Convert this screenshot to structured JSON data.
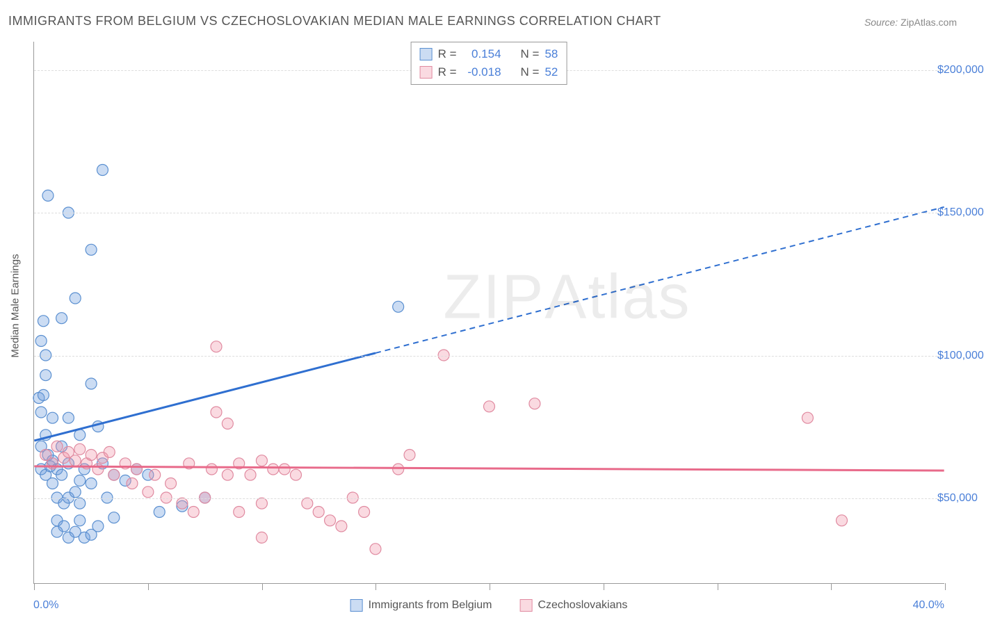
{
  "title": "IMMIGRANTS FROM BELGIUM VS CZECHOSLOVAKIAN MEDIAN MALE EARNINGS CORRELATION CHART",
  "source": {
    "label": "Source:",
    "name": "ZipAtlas.com"
  },
  "watermark": {
    "bold": "ZIP",
    "light": "Atlas"
  },
  "chart": {
    "type": "scatter",
    "background_color": "#ffffff",
    "grid_color": "#dddddd",
    "axis_color": "#999999",
    "text_color": "#555555",
    "accent_color": "#4a7fd8",
    "y_axis": {
      "title": "Median Male Earnings",
      "min": 20000,
      "max": 210000,
      "ticks": [
        {
          "value": 50000,
          "label": "$50,000"
        },
        {
          "value": 100000,
          "label": "$100,000"
        },
        {
          "value": 150000,
          "label": "$150,000"
        },
        {
          "value": 200000,
          "label": "$200,000"
        }
      ]
    },
    "x_axis": {
      "min": 0,
      "max": 40,
      "left_label": "0.0%",
      "right_label": "40.0%",
      "tick_positions": [
        0,
        5,
        10,
        15,
        20,
        25,
        30,
        35,
        40
      ]
    },
    "series": [
      {
        "id": "belgium",
        "label": "Immigrants from Belgium",
        "marker_fill": "rgba(106,156,220,0.35)",
        "marker_stroke": "#5a8fd0",
        "line_color": "#2f6fd0",
        "line_width": 3,
        "dash_after_x": 15,
        "marker_radius": 8,
        "trend": {
          "x1": 0,
          "y1": 70000,
          "x2": 40,
          "y2": 152000
        },
        "stats": {
          "R": "0.154",
          "N": "58"
        },
        "points": [
          {
            "x": 0.2,
            "y": 85000
          },
          {
            "x": 0.3,
            "y": 80000
          },
          {
            "x": 0.4,
            "y": 86000
          },
          {
            "x": 0.3,
            "y": 105000
          },
          {
            "x": 0.5,
            "y": 100000
          },
          {
            "x": 0.4,
            "y": 112000
          },
          {
            "x": 0.5,
            "y": 72000
          },
          {
            "x": 0.6,
            "y": 65000
          },
          {
            "x": 0.3,
            "y": 60000
          },
          {
            "x": 0.5,
            "y": 58000
          },
          {
            "x": 0.7,
            "y": 61000
          },
          {
            "x": 0.8,
            "y": 63000
          },
          {
            "x": 1.0,
            "y": 60000
          },
          {
            "x": 1.2,
            "y": 58000
          },
          {
            "x": 0.8,
            "y": 55000
          },
          {
            "x": 1.0,
            "y": 50000
          },
          {
            "x": 1.3,
            "y": 48000
          },
          {
            "x": 1.5,
            "y": 50000
          },
          {
            "x": 1.8,
            "y": 52000
          },
          {
            "x": 2.0,
            "y": 48000
          },
          {
            "x": 1.0,
            "y": 42000
          },
          {
            "x": 1.3,
            "y": 40000
          },
          {
            "x": 1.8,
            "y": 38000
          },
          {
            "x": 2.2,
            "y": 36000
          },
          {
            "x": 2.5,
            "y": 37000
          },
          {
            "x": 0.6,
            "y": 156000
          },
          {
            "x": 1.5,
            "y": 150000
          },
          {
            "x": 3.0,
            "y": 165000
          },
          {
            "x": 2.5,
            "y": 137000
          },
          {
            "x": 1.8,
            "y": 120000
          },
          {
            "x": 1.2,
            "y": 113000
          },
          {
            "x": 2.5,
            "y": 90000
          },
          {
            "x": 2.8,
            "y": 75000
          },
          {
            "x": 3.0,
            "y": 62000
          },
          {
            "x": 3.5,
            "y": 58000
          },
          {
            "x": 1.5,
            "y": 78000
          },
          {
            "x": 0.8,
            "y": 78000
          },
          {
            "x": 2.0,
            "y": 72000
          },
          {
            "x": 1.2,
            "y": 68000
          },
          {
            "x": 1.5,
            "y": 62000
          },
          {
            "x": 2.2,
            "y": 60000
          },
          {
            "x": 2.5,
            "y": 55000
          },
          {
            "x": 3.2,
            "y": 50000
          },
          {
            "x": 2.0,
            "y": 42000
          },
          {
            "x": 2.8,
            "y": 40000
          },
          {
            "x": 1.5,
            "y": 36000
          },
          {
            "x": 1.0,
            "y": 38000
          },
          {
            "x": 4.0,
            "y": 56000
          },
          {
            "x": 4.5,
            "y": 60000
          },
          {
            "x": 5.0,
            "y": 58000
          },
          {
            "x": 5.5,
            "y": 45000
          },
          {
            "x": 6.5,
            "y": 47000
          },
          {
            "x": 7.5,
            "y": 50000
          },
          {
            "x": 16.0,
            "y": 117000
          },
          {
            "x": 3.5,
            "y": 43000
          },
          {
            "x": 2.0,
            "y": 56000
          },
          {
            "x": 0.5,
            "y": 93000
          },
          {
            "x": 0.3,
            "y": 68000
          }
        ]
      },
      {
        "id": "czech",
        "label": "Czechoslovakians",
        "marker_fill": "rgba(240,150,170,0.35)",
        "marker_stroke": "#e08aa0",
        "line_color": "#e86a8a",
        "line_width": 3,
        "dash_after_x": 40,
        "marker_radius": 8,
        "trend": {
          "x1": 0,
          "y1": 61000,
          "x2": 40,
          "y2": 59500
        },
        "stats": {
          "R": "-0.018",
          "N": "52"
        },
        "points": [
          {
            "x": 0.5,
            "y": 65000
          },
          {
            "x": 0.8,
            "y": 62000
          },
          {
            "x": 1.0,
            "y": 68000
          },
          {
            "x": 1.3,
            "y": 64000
          },
          {
            "x": 1.5,
            "y": 66000
          },
          {
            "x": 1.8,
            "y": 63000
          },
          {
            "x": 2.0,
            "y": 67000
          },
          {
            "x": 2.3,
            "y": 62000
          },
          {
            "x": 2.5,
            "y": 65000
          },
          {
            "x": 2.8,
            "y": 60000
          },
          {
            "x": 3.0,
            "y": 64000
          },
          {
            "x": 3.3,
            "y": 66000
          },
          {
            "x": 3.5,
            "y": 58000
          },
          {
            "x": 4.0,
            "y": 62000
          },
          {
            "x": 4.3,
            "y": 55000
          },
          {
            "x": 4.5,
            "y": 60000
          },
          {
            "x": 5.0,
            "y": 52000
          },
          {
            "x": 5.3,
            "y": 58000
          },
          {
            "x": 5.8,
            "y": 50000
          },
          {
            "x": 6.0,
            "y": 55000
          },
          {
            "x": 6.5,
            "y": 48000
          },
          {
            "x": 7.0,
            "y": 45000
          },
          {
            "x": 7.5,
            "y": 50000
          },
          {
            "x": 8.0,
            "y": 80000
          },
          {
            "x": 8.5,
            "y": 76000
          },
          {
            "x": 8.0,
            "y": 103000
          },
          {
            "x": 9.0,
            "y": 62000
          },
          {
            "x": 9.5,
            "y": 58000
          },
          {
            "x": 10.0,
            "y": 63000
          },
          {
            "x": 10.5,
            "y": 60000
          },
          {
            "x": 10.0,
            "y": 48000
          },
          {
            "x": 10.0,
            "y": 36000
          },
          {
            "x": 11.5,
            "y": 58000
          },
          {
            "x": 12.0,
            "y": 48000
          },
          {
            "x": 12.5,
            "y": 45000
          },
          {
            "x": 13.0,
            "y": 42000
          },
          {
            "x": 13.5,
            "y": 40000
          },
          {
            "x": 14.0,
            "y": 50000
          },
          {
            "x": 14.5,
            "y": 45000
          },
          {
            "x": 15.0,
            "y": 32000
          },
          {
            "x": 16.0,
            "y": 60000
          },
          {
            "x": 16.5,
            "y": 65000
          },
          {
            "x": 18.0,
            "y": 100000
          },
          {
            "x": 20.0,
            "y": 82000
          },
          {
            "x": 22.0,
            "y": 83000
          },
          {
            "x": 34.0,
            "y": 78000
          },
          {
            "x": 35.5,
            "y": 42000
          },
          {
            "x": 8.5,
            "y": 58000
          },
          {
            "x": 9.0,
            "y": 45000
          },
          {
            "x": 11.0,
            "y": 60000
          },
          {
            "x": 6.8,
            "y": 62000
          },
          {
            "x": 7.8,
            "y": 60000
          }
        ]
      }
    ]
  },
  "stats_box": {
    "R_label": "R =",
    "N_label": "N ="
  },
  "legend_bottom": {
    "items": [
      "belgium",
      "czech"
    ]
  }
}
